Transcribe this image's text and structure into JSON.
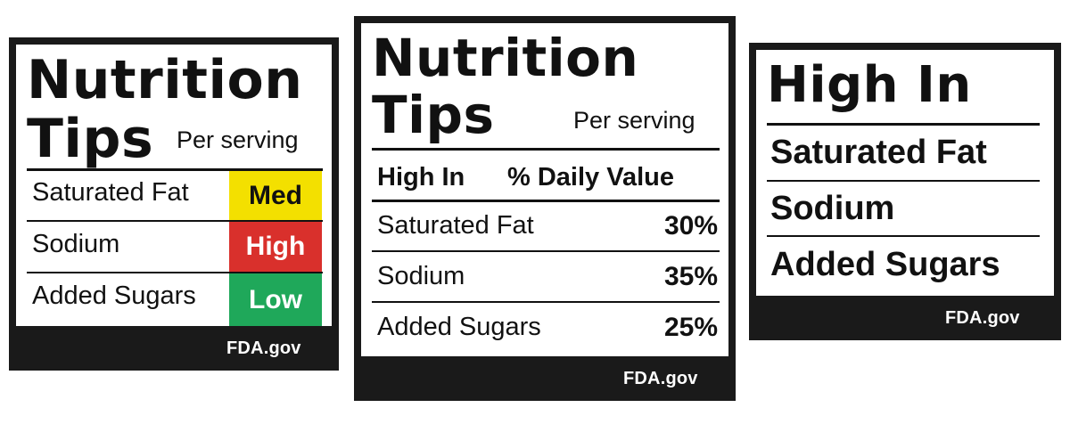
{
  "label1": {
    "title_line1": "Nutrition",
    "title_line2": "Tips",
    "per_serving": "Per serving",
    "rows": [
      {
        "nutrient": "Saturated Fat",
        "level": "Med",
        "color": "#f3e000",
        "text_color": "#111111"
      },
      {
        "nutrient": "Sodium",
        "level": "High",
        "color": "#d9302c",
        "text_color": "#ffffff"
      },
      {
        "nutrient": "Added Sugars",
        "level": "Low",
        "color": "#1fa85a",
        "text_color": "#ffffff"
      }
    ],
    "footer": "FDA.gov"
  },
  "label2": {
    "title_line1": "Nutrition",
    "title_line2": "Tips",
    "per_serving": "Per serving",
    "header_left": "High In",
    "header_right": "% Daily Value",
    "rows": [
      {
        "nutrient": "Saturated Fat",
        "dv": "30%"
      },
      {
        "nutrient": "Sodium",
        "dv": "35%"
      },
      {
        "nutrient": "Added Sugars",
        "dv": "25%"
      }
    ],
    "footer": "FDA.gov"
  },
  "label3": {
    "title": "High In",
    "rows": [
      "Saturated Fat",
      "Sodium",
      "Added Sugars"
    ],
    "footer": "FDA.gov"
  }
}
